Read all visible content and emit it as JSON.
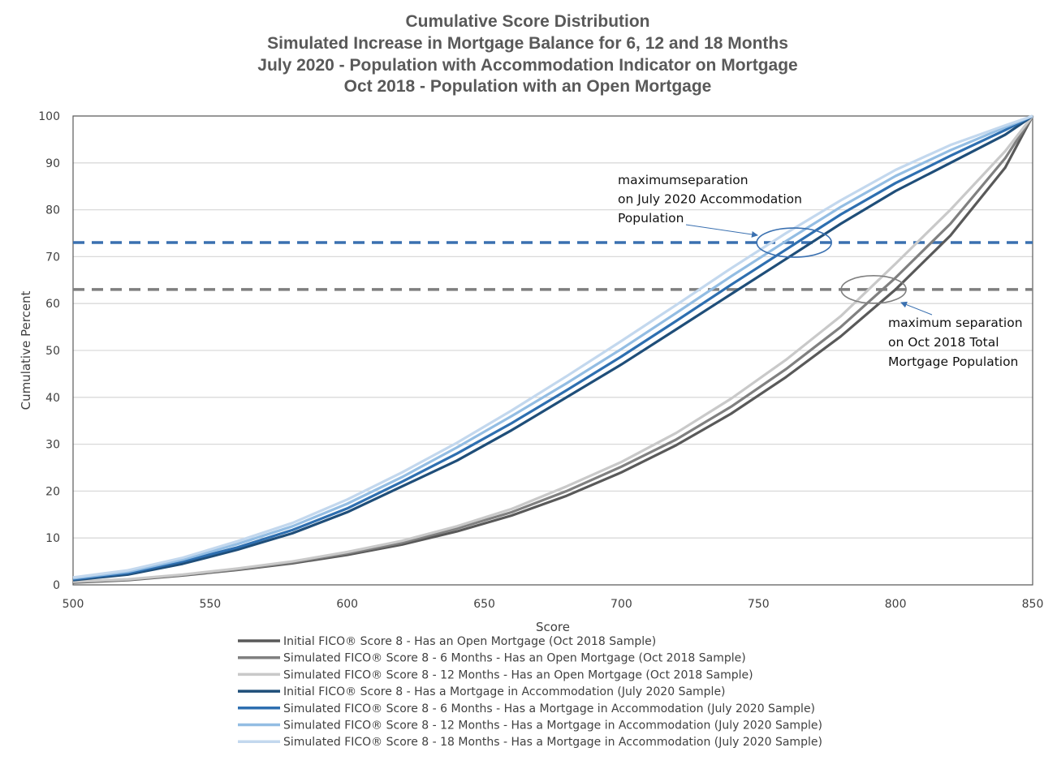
{
  "chart_data": {
    "type": "line",
    "title": [
      "Cumulative Score Distribution",
      "Simulated Increase in Mortgage Balance for 6, 12 and 18 Months",
      "July 2020 - Population with Accommodation Indicator on Mortgage",
      "Oct 2018 - Population with an Open Mortgage"
    ],
    "xlabel": "Score",
    "ylabel": "Cumulative Percent",
    "xlim": [
      500,
      850
    ],
    "ylim": [
      0,
      100
    ],
    "xticks": [
      500,
      550,
      600,
      650,
      700,
      750,
      800,
      850
    ],
    "yticks": [
      0,
      10,
      20,
      30,
      40,
      50,
      60,
      70,
      80,
      90,
      100
    ],
    "grid": "horizontal",
    "legend_position": "bottom",
    "x": [
      500,
      520,
      540,
      560,
      580,
      600,
      620,
      640,
      660,
      680,
      700,
      720,
      740,
      760,
      780,
      800,
      820,
      840,
      850
    ],
    "series": [
      {
        "name": "Initial FICO® Score 8 - Has an Open Mortgage (Oct 2018 Sample)",
        "color": "#595959",
        "values": [
          0.5,
          1,
          2,
          3.2,
          4.6,
          6.4,
          8.6,
          11.4,
          14.8,
          19,
          24,
          29.8,
          36.5,
          44.3,
          53,
          63,
          74.5,
          89,
          100
        ]
      },
      {
        "name": "Simulated FICO® Score 8 - 6 Months - Has an Open Mortgage (Oct 2018 Sample)",
        "color": "#808080",
        "values": [
          0.6,
          1.1,
          2.1,
          3.3,
          4.8,
          6.7,
          9,
          12,
          15.5,
          20,
          25.2,
          31,
          38,
          46,
          55,
          65.5,
          77,
          91,
          100
        ]
      },
      {
        "name": "Simulated FICO® Score 8 - 12 Months - Has an Open Mortgage (Oct 2018 Sample)",
        "color": "#c9c9c9",
        "values": [
          0.7,
          1.2,
          2.2,
          3.5,
          5,
          7,
          9.4,
          12.5,
          16.2,
          21,
          26.2,
          32.4,
          39.7,
          48,
          57.3,
          68.5,
          80,
          92.5,
          100
        ]
      },
      {
        "name": "Initial FICO® Score 8 - Has a Mortgage in Accommodation (July 2020 Sample)",
        "color": "#1f4e79",
        "values": [
          1,
          2.2,
          4.5,
          7.5,
          11,
          15.5,
          21,
          26.5,
          33,
          40,
          47,
          54.5,
          62,
          69.5,
          77,
          84,
          90,
          96,
          100
        ]
      },
      {
        "name": "Simulated FICO® Score 8 - 6 Months - Has a Mortgage in Accommodation (July 2020 Sample)",
        "color": "#2e6fb0",
        "values": [
          1.2,
          2.5,
          5,
          8,
          11.7,
          16.3,
          22,
          28,
          34.5,
          41.5,
          48.7,
          56.3,
          64,
          71.5,
          79,
          85.7,
          91.5,
          97,
          100
        ]
      },
      {
        "name": "Simulated FICO® Score 8 - 12 Months - Has a Mortgage in Accommodation (July 2020 Sample)",
        "color": "#93bde3",
        "values": [
          1.4,
          2.8,
          5.4,
          8.7,
          12.5,
          17.3,
          23,
          29.3,
          36,
          43,
          50.3,
          58,
          65.8,
          73.3,
          80.6,
          87.2,
          92.7,
          97.6,
          100
        ]
      },
      {
        "name": "Simulated FICO® Score 8 - 18 Months - Has a Mortgage in Accommodation (July 2020 Sample)",
        "color": "#c3d8ee",
        "values": [
          1.6,
          3.1,
          5.8,
          9.3,
          13.2,
          18.2,
          24,
          30.3,
          37.2,
          44.5,
          52,
          59.7,
          67.5,
          75,
          82,
          88.5,
          93.8,
          98,
          100
        ]
      }
    ],
    "reference_lines": [
      {
        "y": 73,
        "color": "#3a70b0",
        "style": "dashed"
      },
      {
        "y": 63,
        "color": "#7f7f7f",
        "style": "dashed"
      }
    ],
    "annotations": [
      {
        "lines": [
          "maximumseparation",
          "on July 2020 Accommodation",
          "Population"
        ],
        "target_x": 763,
        "target_y": 73,
        "color": "#3a70b0"
      },
      {
        "lines": [
          "maximum separation",
          "on Oct 2018 Total",
          "Mortgage Population"
        ],
        "target_x": 792,
        "target_y": 63,
        "color": "#7f7f7f"
      }
    ]
  }
}
